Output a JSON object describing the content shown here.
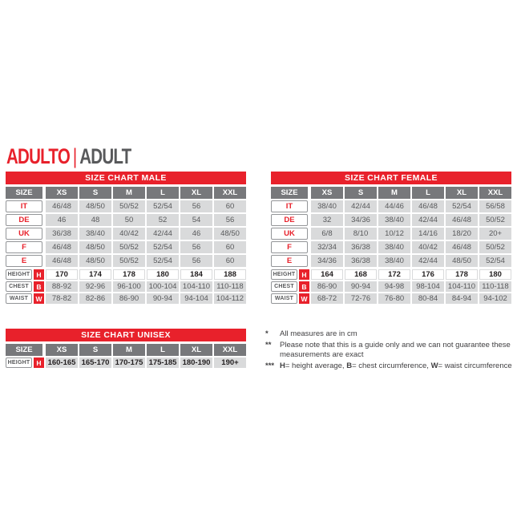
{
  "title": {
    "primary": "ADULTO",
    "separator": "|",
    "secondary": "ADULT"
  },
  "colors": {
    "red": "#E8212B",
    "header_gray": "#77787B",
    "cell_gray": "#D9DADB",
    "text_gray": "#58595B",
    "text_dark": "#231F20"
  },
  "size_label": "SIZE",
  "columns": [
    "XS",
    "S",
    "M",
    "L",
    "XL",
    "XXL"
  ],
  "tables": {
    "male": {
      "title": "SIZE CHART MALE",
      "size_rows": [
        {
          "label": "IT",
          "values": [
            "46/48",
            "48/50",
            "50/52",
            "52/54",
            "56",
            "60"
          ]
        },
        {
          "label": "DE",
          "values": [
            "46",
            "48",
            "50",
            "52",
            "54",
            "56"
          ]
        },
        {
          "label": "UK",
          "values": [
            "36/38",
            "38/40",
            "40/42",
            "42/44",
            "46",
            "48/50"
          ]
        },
        {
          "label": "F",
          "values": [
            "46/48",
            "48/50",
            "50/52",
            "52/54",
            "56",
            "60"
          ]
        },
        {
          "label": "E",
          "values": [
            "46/48",
            "48/50",
            "50/52",
            "52/54",
            "56",
            "60"
          ]
        }
      ],
      "measure_rows": [
        {
          "label": "HEIGHT",
          "letter": "H",
          "style": "height",
          "values": [
            "170",
            "174",
            "178",
            "180",
            "184",
            "188"
          ]
        },
        {
          "label": "CHEST",
          "letter": "B",
          "style": "plain",
          "values": [
            "88-92",
            "92-96",
            "96-100",
            "100-104",
            "104-110",
            "110-118"
          ]
        },
        {
          "label": "WAIST",
          "letter": "W",
          "style": "plain",
          "values": [
            "78-82",
            "82-86",
            "86-90",
            "90-94",
            "94-104",
            "104-112"
          ]
        }
      ]
    },
    "female": {
      "title": "SIZE CHART FEMALE",
      "size_rows": [
        {
          "label": "IT",
          "values": [
            "38/40",
            "42/44",
            "44/46",
            "46/48",
            "52/54",
            "56/58"
          ]
        },
        {
          "label": "DE",
          "values": [
            "32",
            "34/36",
            "38/40",
            "42/44",
            "46/48",
            "50/52"
          ]
        },
        {
          "label": "UK",
          "values": [
            "6/8",
            "8/10",
            "10/12",
            "14/16",
            "18/20",
            "20+"
          ]
        },
        {
          "label": "F",
          "values": [
            "32/34",
            "36/38",
            "38/40",
            "40/42",
            "46/48",
            "50/52"
          ]
        },
        {
          "label": "E",
          "values": [
            "34/36",
            "36/38",
            "38/40",
            "42/44",
            "48/50",
            "52/54"
          ]
        }
      ],
      "measure_rows": [
        {
          "label": "HEIGHT",
          "letter": "H",
          "style": "height",
          "values": [
            "164",
            "168",
            "172",
            "176",
            "178",
            "180"
          ]
        },
        {
          "label": "CHEST",
          "letter": "B",
          "style": "plain",
          "values": [
            "86-90",
            "90-94",
            "94-98",
            "98-104",
            "104-110",
            "110-118"
          ]
        },
        {
          "label": "WAIST",
          "letter": "W",
          "style": "plain",
          "values": [
            "68-72",
            "72-76",
            "76-80",
            "80-84",
            "84-94",
            "94-102"
          ]
        }
      ]
    },
    "unisex": {
      "title": "SIZE CHART UNISEX",
      "size_rows": [],
      "measure_rows": [
        {
          "label": "HEIGHT",
          "letter": "H",
          "style": "unisex",
          "values": [
            "160-165",
            "165-170",
            "170-175",
            "175-185",
            "180-190",
            "190+"
          ]
        }
      ]
    }
  },
  "footnotes": {
    "items": [
      {
        "marker": "*",
        "segments": [
          {
            "t": "All measures are in cm"
          }
        ]
      },
      {
        "marker": "**",
        "segments": [
          {
            "t": "Please note that this is a guide only and we can not guarantee these measurements are exact"
          }
        ]
      },
      {
        "marker": "***",
        "segments": [
          {
            "b": "H"
          },
          {
            "t": "= height average, "
          },
          {
            "b": "B"
          },
          {
            "t": "= chest circumference, "
          },
          {
            "b": "W"
          },
          {
            "t": "= waist circumference"
          }
        ]
      }
    ]
  }
}
